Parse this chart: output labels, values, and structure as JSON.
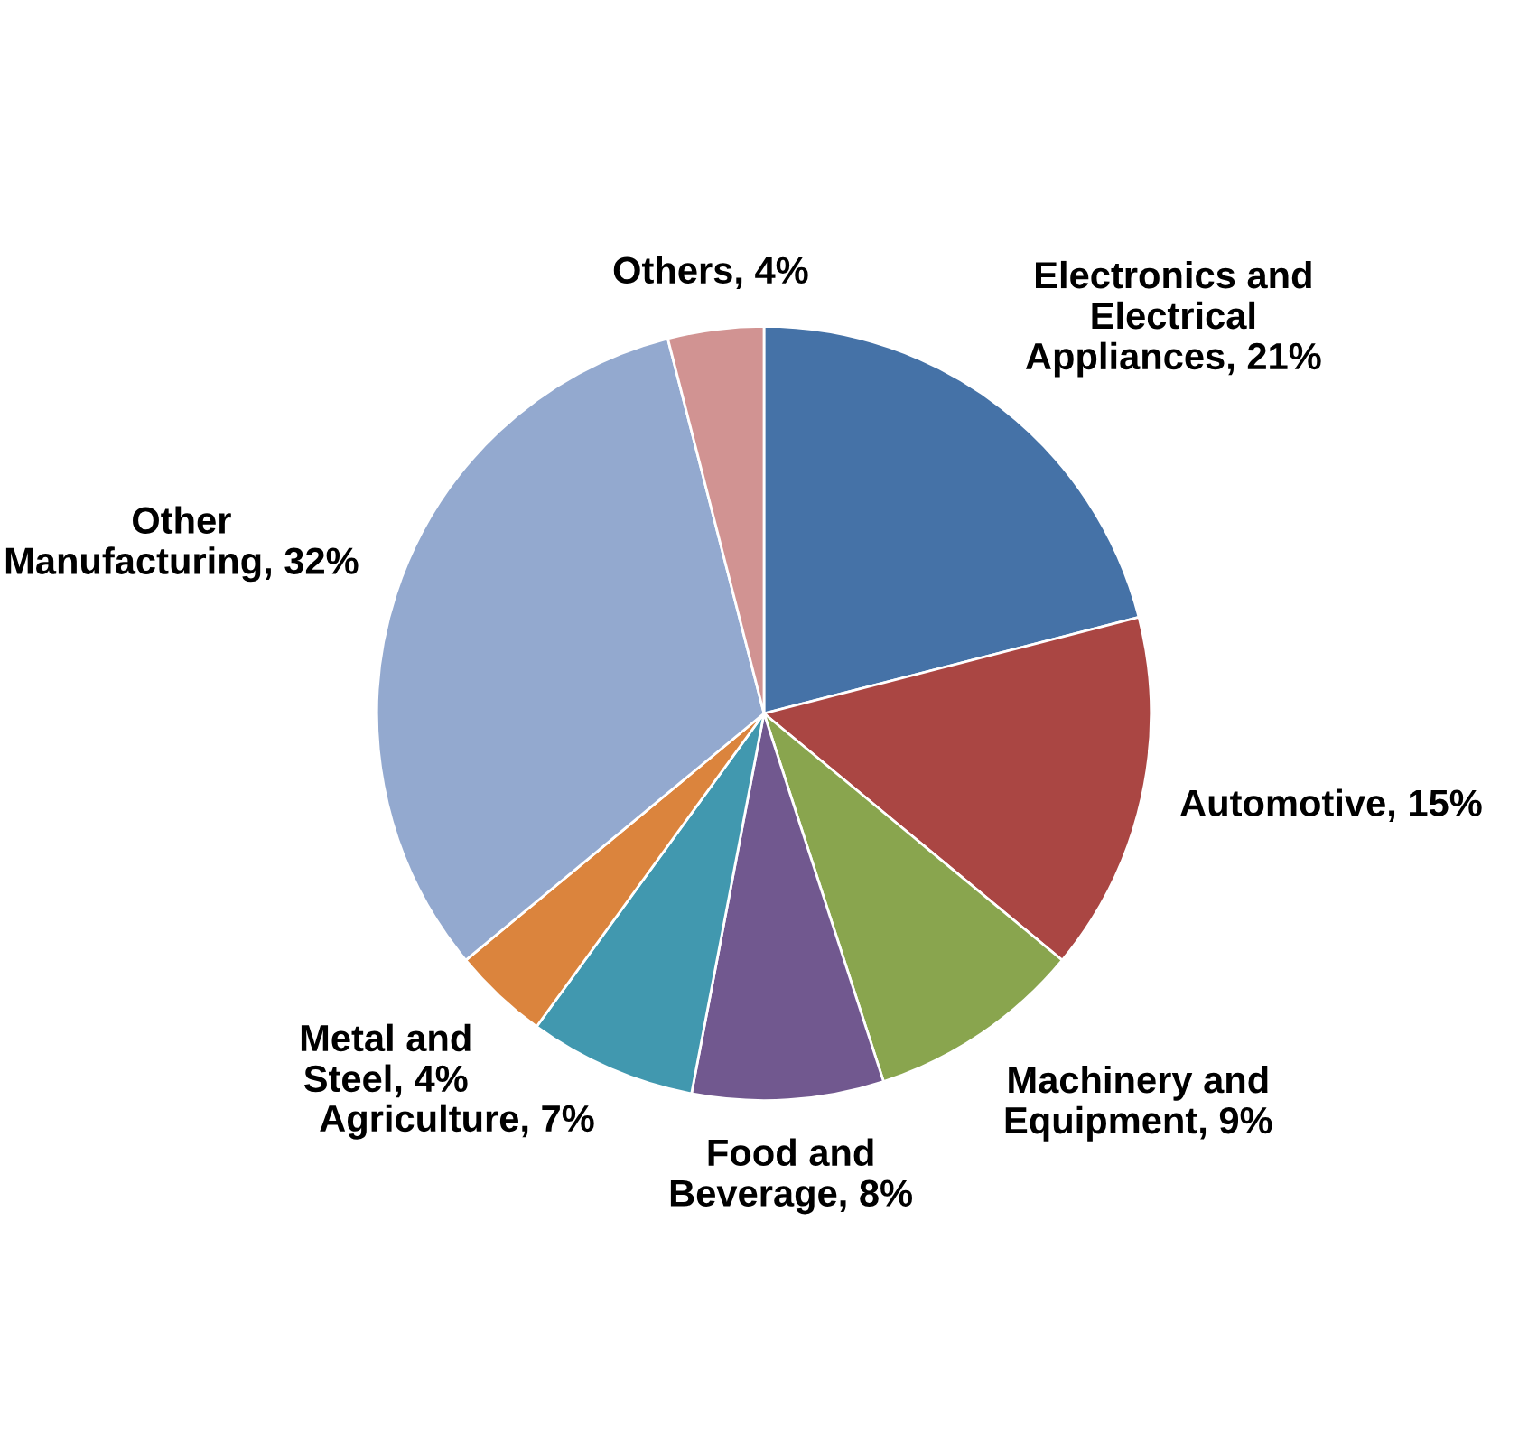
{
  "chart_data": {
    "type": "pie",
    "categories": [
      "Electronics and Electrical Appliances",
      "Automotive",
      "Machinery and Equipment",
      "Food and Beverage",
      "Agriculture",
      "Metal and Steel",
      "Other Manufacturing",
      "Others"
    ],
    "values": [
      21,
      15,
      9,
      8,
      7,
      4,
      32,
      4
    ],
    "value_labels": [
      "21%",
      "15%",
      "9%",
      "8%",
      "7%",
      "4%",
      "32%",
      "4%"
    ],
    "colors": [
      "#4572a7",
      "#aa4643",
      "#89a54e",
      "#71588f",
      "#4198af",
      "#db843d",
      "#93a9cf",
      "#d19392"
    ]
  }
}
